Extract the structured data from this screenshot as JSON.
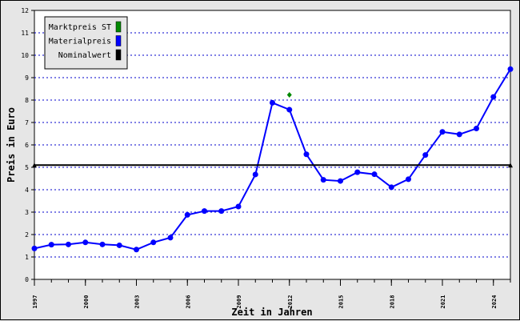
{
  "chart_data": {
    "type": "line",
    "xlabel": "Zeit in Jahren",
    "ylabel": "Preis in Euro",
    "xlim": [
      1997,
      2025
    ],
    "ylim": [
      0,
      12
    ],
    "xticks": [
      1997,
      2000,
      2003,
      2006,
      2009,
      2012,
      2015,
      2018,
      2021,
      2024
    ],
    "xtick_labels": [
      "1997",
      "2000",
      "2003",
      "2006",
      "2009",
      "2012",
      "2015",
      "2018",
      "2021",
      "2024"
    ],
    "yticks": [
      0,
      1,
      2,
      3,
      4,
      5,
      6,
      7,
      8,
      9,
      10,
      11,
      12
    ],
    "ytick_labels": [
      "0",
      "1",
      "2",
      "3",
      "4",
      "5",
      "6",
      "7",
      "8",
      "9",
      "10",
      "11",
      "12"
    ],
    "grid": true,
    "legend_position": "top-left",
    "legend": [
      {
        "label": "Marktpreis ST",
        "color": "#008800"
      },
      {
        "label": "Materialpreis",
        "color": "#0000ff"
      },
      {
        "label": "Nominalwert",
        "color": "#000000"
      }
    ],
    "series": [
      {
        "name": "Materialpreis",
        "color": "#0000ff",
        "x": [
          1997,
          1998,
          1999,
          2000,
          2001,
          2002,
          2003,
          2004,
          2005,
          2006,
          2007,
          2008,
          2009,
          2010,
          2011,
          2012,
          2013,
          2014,
          2015,
          2016,
          2017,
          2018,
          2019,
          2020,
          2021,
          2022,
          2023,
          2024,
          2025
        ],
        "values": [
          1.38,
          1.55,
          1.56,
          1.65,
          1.56,
          1.52,
          1.33,
          1.65,
          1.86,
          2.88,
          3.05,
          3.05,
          3.25,
          4.68,
          7.88,
          7.57,
          5.58,
          4.44,
          4.39,
          4.78,
          4.69,
          4.11,
          4.47,
          5.55,
          6.58,
          6.47,
          6.73,
          8.14,
          9.38
        ]
      },
      {
        "name": "Marktpreis ST",
        "color": "#008800",
        "x": [
          2012
        ],
        "values": [
          8.23
        ]
      },
      {
        "name": "Nominalwert",
        "color": "#000000",
        "x": [
          1997,
          2025
        ],
        "values": [
          5.1,
          5.1
        ]
      }
    ]
  }
}
